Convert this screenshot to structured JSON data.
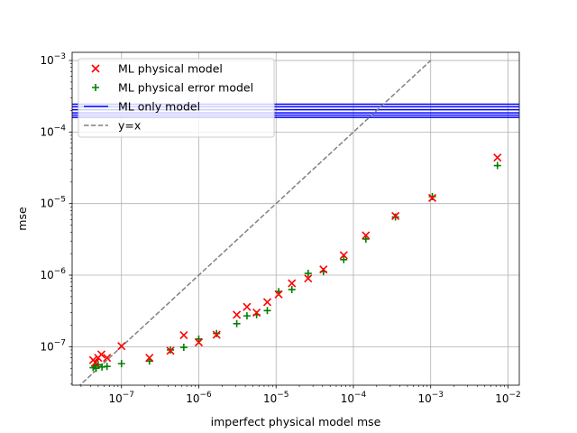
{
  "chart_data": {
    "type": "scatter",
    "title": "",
    "xlabel": "imperfect physical model mse",
    "ylabel": "mse",
    "xscale": "log",
    "yscale": "log",
    "xlim": [
      2.3e-08,
      0.014
    ],
    "ylim": [
      2.9e-08,
      0.0013
    ],
    "grid": true,
    "legend_position": "upper-left",
    "x_ticks": [
      {
        "value": 1e-07,
        "base": "10",
        "exp": "−7"
      },
      {
        "value": 1e-06,
        "base": "10",
        "exp": "−6"
      },
      {
        "value": 1e-05,
        "base": "10",
        "exp": "−5"
      },
      {
        "value": 0.0001,
        "base": "10",
        "exp": "−4"
      },
      {
        "value": 0.001,
        "base": "10",
        "exp": "−3"
      },
      {
        "value": 0.01,
        "base": "10",
        "exp": "−2"
      }
    ],
    "y_ticks": [
      {
        "value": 1e-07,
        "base": "10",
        "exp": "−7"
      },
      {
        "value": 1e-06,
        "base": "10",
        "exp": "−6"
      },
      {
        "value": 1e-05,
        "base": "10",
        "exp": "−5"
      },
      {
        "value": 0.0001,
        "base": "10",
        "exp": "−4"
      },
      {
        "value": 0.001,
        "base": "10",
        "exp": "−3"
      }
    ],
    "series": [
      {
        "name": "ML physical model",
        "marker": "x",
        "color": "#ff0000",
        "points": [
          [
            4.3e-08,
            6.5e-08
          ],
          [
            4.6e-08,
            6e-08
          ],
          [
            5e-08,
            7e-08
          ],
          [
            5.5e-08,
            7.8e-08
          ],
          [
            6.5e-08,
            7e-08
          ],
          [
            1e-07,
            1.02e-07
          ],
          [
            2.3e-07,
            7e-08
          ],
          [
            4.3e-07,
            8.8e-08
          ],
          [
            6.4e-07,
            1.45e-07
          ],
          [
            1e-06,
            1.15e-07
          ],
          [
            1.7e-06,
            1.47e-07
          ],
          [
            3.1e-06,
            2.8e-07
          ],
          [
            4.2e-06,
            3.6e-07
          ],
          [
            5.6e-06,
            3e-07
          ],
          [
            7.7e-06,
            4.2e-07
          ],
          [
            1.08e-05,
            5.4e-07
          ],
          [
            1.6e-05,
            7.7e-07
          ],
          [
            2.6e-05,
            9e-07
          ],
          [
            4.1e-05,
            1.2e-06
          ],
          [
            7.5e-05,
            1.9e-06
          ],
          [
            0.000145,
            3.6e-06
          ],
          [
            0.00035,
            6.7e-06
          ],
          [
            0.00105,
            1.2e-05
          ],
          [
            0.0073,
            4.4e-05
          ]
        ]
      },
      {
        "name": "ML physical error model",
        "marker": "+",
        "color": "#008000",
        "points": [
          [
            4.3e-08,
            5.1e-08
          ],
          [
            4.5e-08,
            5.4e-08
          ],
          [
            4.7e-08,
            5e-08
          ],
          [
            5e-08,
            5.6e-08
          ],
          [
            5.6e-08,
            5.2e-08
          ],
          [
            6.5e-08,
            5.3e-08
          ],
          [
            1e-07,
            5.8e-08
          ],
          [
            2.3e-07,
            6.3e-08
          ],
          [
            4.3e-07,
            9e-08
          ],
          [
            6.4e-07,
            9.8e-08
          ],
          [
            1e-06,
            1.28e-07
          ],
          [
            1.7e-06,
            1.53e-07
          ],
          [
            3.1e-06,
            2.1e-07
          ],
          [
            4.2e-06,
            2.7e-07
          ],
          [
            5.6e-06,
            2.8e-07
          ],
          [
            7.7e-06,
            3.2e-07
          ],
          [
            1.08e-05,
            5.9e-07
          ],
          [
            1.6e-05,
            6.3e-07
          ],
          [
            2.6e-05,
            1.06e-06
          ],
          [
            4.1e-05,
            1.12e-06
          ],
          [
            7.5e-05,
            1.65e-06
          ],
          [
            0.000145,
            3.2e-06
          ],
          [
            0.00035,
            6.5e-06
          ],
          [
            0.00105,
            1.25e-05
          ],
          [
            0.0073,
            3.4e-05
          ]
        ]
      },
      {
        "name": "ML only model",
        "style": "hlines",
        "color": "#0000ff",
        "x_range": [
          2.3e-08,
          0.014
        ],
        "values": [
          0.000245,
          0.000225,
          0.000205,
          0.000185,
          0.000172,
          0.00016
        ]
      },
      {
        "name": "y=x",
        "style": "dashed-line",
        "color": "#808080",
        "points": [
          [
            2.3e-08,
            2.3e-08
          ],
          [
            0.001,
            0.001
          ]
        ]
      }
    ]
  }
}
